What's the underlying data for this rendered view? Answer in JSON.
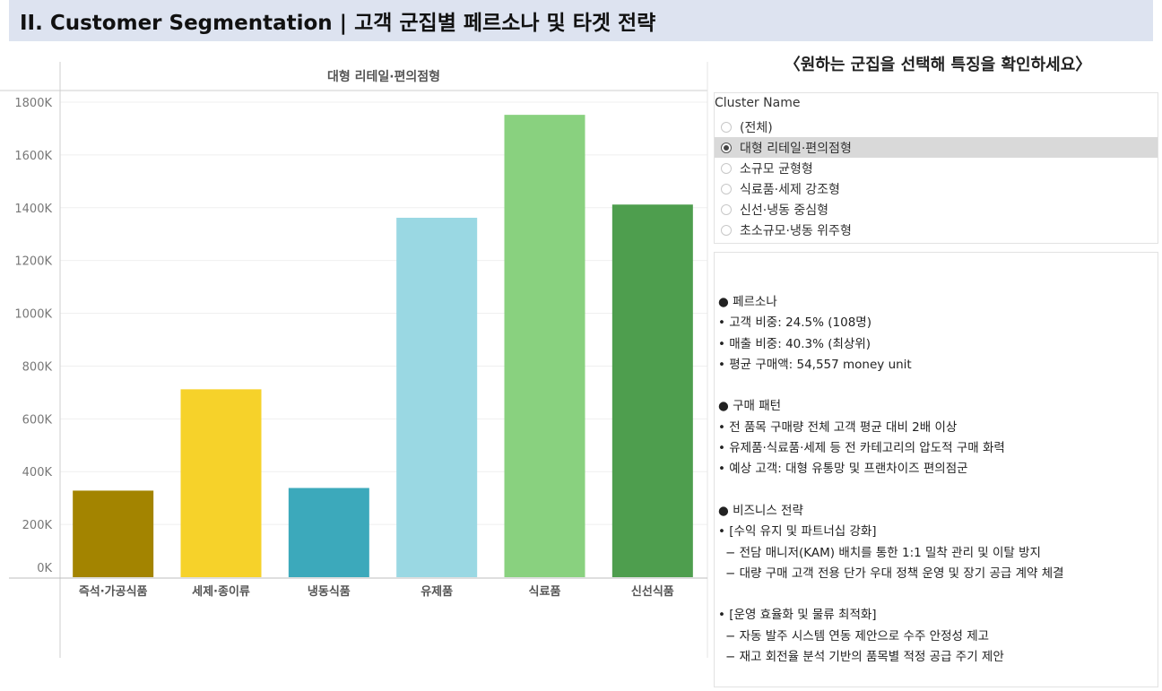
{
  "header": {
    "title": "II. Customer Segmentation | 고객 군집별 페르소나 및 타겟 전략"
  },
  "instruction": "〈원하는 군집을 선택해 특징을 확인하세요〉",
  "filter": {
    "title": "Cluster Name",
    "options": [
      {
        "label": "(전체)",
        "selected": false
      },
      {
        "label": "대형 리테일·편의점형",
        "selected": true
      },
      {
        "label": "소규모 균형형",
        "selected": false
      },
      {
        "label": "식료품·세제 강조형",
        "selected": false
      },
      {
        "label": "신선·냉동 중심형",
        "selected": false
      },
      {
        "label": "초소규모·냉동 위주형",
        "selected": false
      }
    ]
  },
  "description": [
    {
      "text": "● 페르소나",
      "indent": false
    },
    {
      "text": "• 고객 비중: 24.5% (108명)",
      "indent": false
    },
    {
      "text": "• 매출 비중: 40.3% (최상위)",
      "indent": false
    },
    {
      "text": "• 평균 구매액: 54,557 money unit",
      "indent": false
    },
    {
      "text": "",
      "indent": false
    },
    {
      "text": "● 구매 패턴",
      "indent": false
    },
    {
      "text": "• 전 품목 구매량 전체 고객 평균 대비 2배 이상",
      "indent": false
    },
    {
      "text": "• 유제품·식료품·세제 등 전 카테고리의 압도적 구매 화력",
      "indent": false
    },
    {
      "text": "• 예상 고객: 대형 유통망 및 프랜차이즈 편의점군",
      "indent": false
    },
    {
      "text": "",
      "indent": false
    },
    {
      "text": "● 비즈니스 전략",
      "indent": false
    },
    {
      "text": "• [수익 유지 및 파트너십 강화]",
      "indent": false
    },
    {
      "text": "− 전담 매니저(KAM) 배치를 통한 1:1 밀착 관리 및 이탈 방지",
      "indent": true
    },
    {
      "text": "− 대량 구매 고객 전용 단가 우대 정책 운영 및 장기 공급 계약 체결",
      "indent": true
    },
    {
      "text": "",
      "indent": false
    },
    {
      "text": "• [운영 효율화 및 물류 최적화]",
      "indent": false
    },
    {
      "text": "− 자동 발주 시스템 연동 제안으로 수주 안정성 제고",
      "indent": true
    },
    {
      "text": "− 재고 회전율 분석 기반의 품목별 적정 공급 주기 제안",
      "indent": true
    }
  ],
  "chart_data": {
    "type": "bar",
    "title": "대형 리테일·편의점형",
    "categories": [
      "즉석·가공식품",
      "세제·종이류",
      "냉동식품",
      "유제품",
      "식료품",
      "신선식품"
    ],
    "values": [
      328,
      712,
      338,
      1362,
      1752,
      1412
    ],
    "colors": [
      "#a38400",
      "#f6d22a",
      "#3ca9bb",
      "#9ad8e3",
      "#89d17f",
      "#4e9e4e"
    ],
    "ylim": [
      0,
      1800
    ],
    "yticks": [
      0,
      200,
      400,
      600,
      800,
      1000,
      1200,
      1400,
      1600,
      1800
    ],
    "ytick_labels": [
      "0K",
      "200K",
      "400K",
      "600K",
      "800K",
      "1000K",
      "1200K",
      "1400K",
      "1600K",
      "1800K"
    ],
    "xlabel": "",
    "ylabel": "",
    "grid": true
  }
}
